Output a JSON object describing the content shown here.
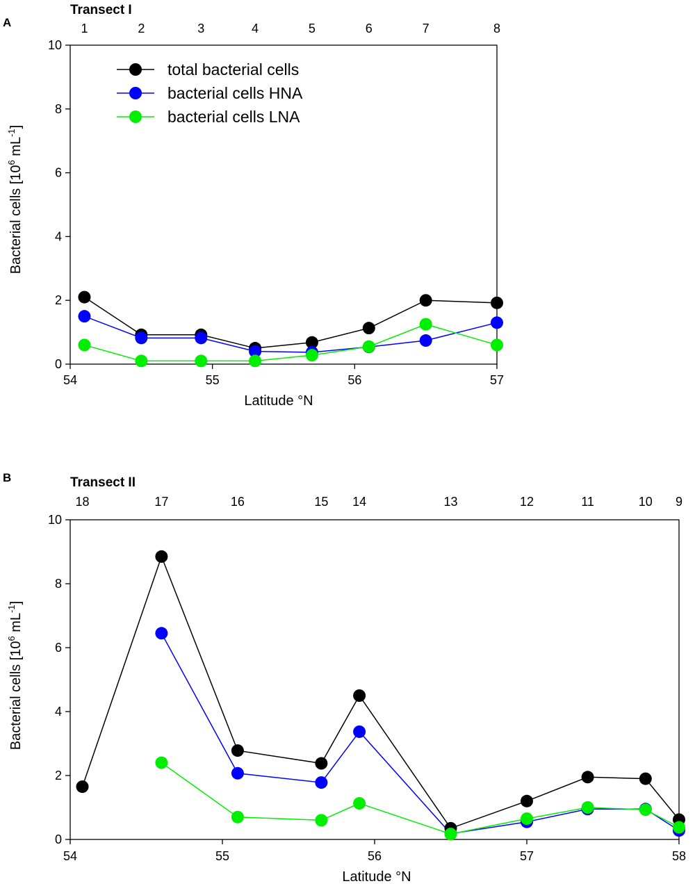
{
  "chart_data": [
    {
      "type": "line",
      "panel_label": "A",
      "transect_title": "Transect I",
      "xlabel": "Latitude °N",
      "ylabel_main": "Bacterial cells [10",
      "ylabel_sup1": "6",
      "ylabel_mid": " mL",
      "ylabel_sup2": "-1",
      "ylabel_end": "]",
      "xlim": [
        54,
        57
      ],
      "ylim": [
        0,
        10
      ],
      "x_ticks": [
        54,
        55,
        56,
        57
      ],
      "y_ticks": [
        0,
        2,
        4,
        6,
        8,
        10
      ],
      "stations": [
        {
          "label": "1",
          "lat": 54.1
        },
        {
          "label": "2",
          "lat": 54.5
        },
        {
          "label": "3",
          "lat": 54.92
        },
        {
          "label": "4",
          "lat": 55.3
        },
        {
          "label": "5",
          "lat": 55.7
        },
        {
          "label": "6",
          "lat": 56.1
        },
        {
          "label": "7",
          "lat": 56.5
        },
        {
          "label": "8",
          "lat": 57.0
        }
      ],
      "legend": [
        {
          "name": "total bacterial cells",
          "color": "#000000"
        },
        {
          "name": "bacterial cells HNA",
          "color": "#0000ff"
        },
        {
          "name": "bacterial cells LNA",
          "color": "#00ee00"
        }
      ],
      "series": [
        {
          "name": "total bacterial cells",
          "color": "#000000",
          "x": [
            54.1,
            54.5,
            54.92,
            55.3,
            55.7,
            56.1,
            56.5,
            57.0
          ],
          "values": [
            2.1,
            0.92,
            0.92,
            0.5,
            0.68,
            1.13,
            2.0,
            1.92
          ]
        },
        {
          "name": "bacterial cells HNA",
          "color": "#0000ff",
          "x": [
            54.1,
            54.5,
            54.92,
            55.3,
            55.7,
            56.1,
            56.5,
            57.0
          ],
          "values": [
            1.5,
            0.82,
            0.82,
            0.4,
            0.37,
            0.54,
            0.74,
            1.3
          ]
        },
        {
          "name": "bacterial cells LNA",
          "color": "#00ee00",
          "x": [
            54.1,
            54.5,
            54.92,
            55.3,
            55.7,
            56.1,
            56.5,
            57.0
          ],
          "values": [
            0.6,
            0.1,
            0.1,
            0.1,
            0.28,
            0.55,
            1.25,
            0.6
          ]
        }
      ]
    },
    {
      "type": "line",
      "panel_label": "B",
      "transect_title": "Transect II",
      "xlabel": "Latitude °N",
      "ylabel_main": "Bacterial cells [10",
      "ylabel_sup1": "6",
      "ylabel_mid": " mL",
      "ylabel_sup2": "-1",
      "ylabel_end": "]",
      "xlim": [
        54,
        58
      ],
      "ylim": [
        0,
        10
      ],
      "x_ticks": [
        54,
        55,
        56,
        57,
        58
      ],
      "y_ticks": [
        0,
        2,
        4,
        6,
        8,
        10
      ],
      "stations": [
        {
          "label": "18",
          "lat": 54.08
        },
        {
          "label": "17",
          "lat": 54.6
        },
        {
          "label": "16",
          "lat": 55.1
        },
        {
          "label": "15",
          "lat": 55.65
        },
        {
          "label": "14",
          "lat": 55.9
        },
        {
          "label": "13",
          "lat": 56.5
        },
        {
          "label": "12",
          "lat": 57.0
        },
        {
          "label": "11",
          "lat": 57.4
        },
        {
          "label": "10",
          "lat": 57.78
        },
        {
          "label": "9",
          "lat": 58.0
        }
      ],
      "series": [
        {
          "name": "total bacterial cells",
          "color": "#000000",
          "x": [
            54.08,
            54.6,
            55.1,
            55.65,
            55.9,
            56.5,
            57.0,
            57.4,
            57.78,
            58.0
          ],
          "values": [
            1.65,
            8.85,
            2.78,
            2.38,
            4.5,
            0.35,
            1.2,
            1.95,
            1.9,
            0.62
          ]
        },
        {
          "name": "bacterial cells HNA",
          "color": "#0000ff",
          "x": [
            54.6,
            55.1,
            55.65,
            55.9,
            56.5,
            57.0,
            57.4,
            57.78,
            58.0
          ],
          "values": [
            6.45,
            2.07,
            1.78,
            3.37,
            0.18,
            0.55,
            0.95,
            0.95,
            0.28
          ]
        },
        {
          "name": "bacterial cells LNA",
          "color": "#00ee00",
          "x": [
            54.6,
            55.1,
            55.65,
            55.9,
            56.5,
            57.0,
            57.4,
            57.78,
            58.0
          ],
          "values": [
            2.4,
            0.7,
            0.6,
            1.13,
            0.17,
            0.65,
            1.0,
            0.93,
            0.38
          ]
        }
      ]
    }
  ]
}
